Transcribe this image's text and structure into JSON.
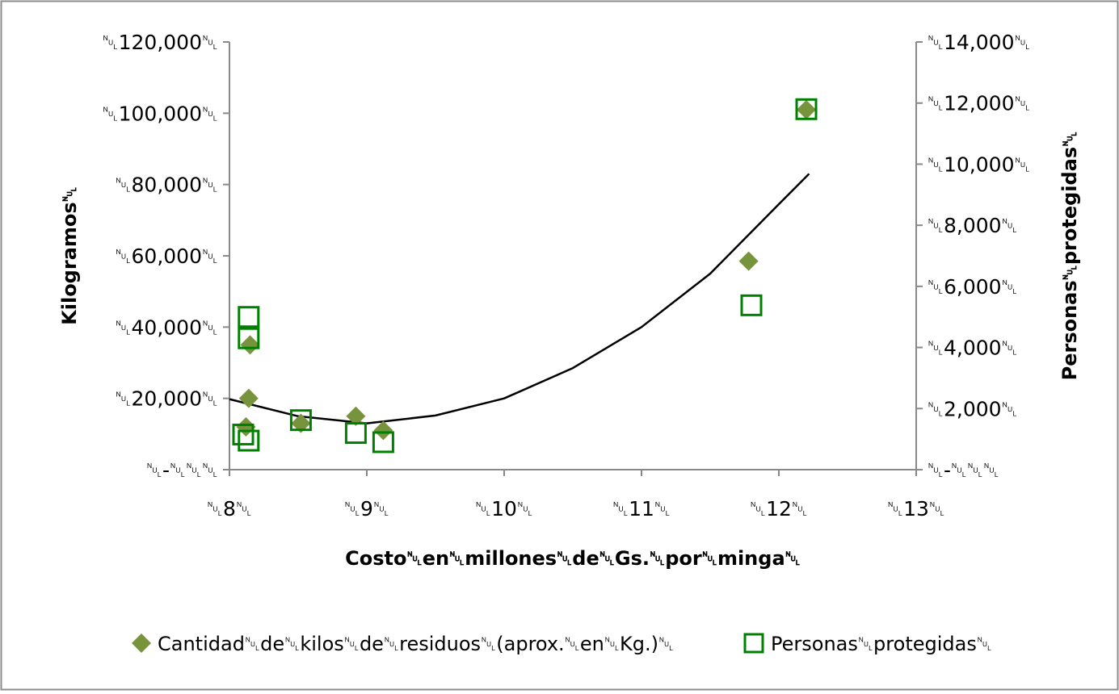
{
  "chart_data": {
    "type": "scatter",
    "title": "",
    "xlabel": "Costo␀en␀millones␀de␀Gs.␀por␀minga␀",
    "ylabel": "Kilogramos␀",
    "y2label": "Personas␀protegidas␀",
    "xlim": [
      8,
      13
    ],
    "ylim": [
      0,
      120000
    ],
    "y2lim": [
      0,
      14000
    ],
    "x_ticks": [
      8,
      9,
      10,
      11,
      12,
      13
    ],
    "x_tick_labels": [
      "␀8␀",
      "␀9␀",
      "␀10␀",
      "␀11␀",
      "␀12␀",
      "␀13␀"
    ],
    "y_ticks": [
      0,
      20000,
      40000,
      60000,
      80000,
      100000,
      120000
    ],
    "y_tick_labels": [
      "␀-␀␀␀",
      "␀20,000␀",
      "␀40,000␀",
      "␀60,000␀",
      "␀80,000␀",
      "␀100,000␀",
      "␀120,000␀"
    ],
    "y2_ticks": [
      0,
      2000,
      4000,
      6000,
      8000,
      10000,
      12000,
      14000
    ],
    "y2_tick_labels": [
      "␀-␀␀␀",
      "␀2,000␀",
      "␀4,000␀",
      "␀6,000␀",
      "␀8,000␀",
      "␀10,000␀",
      "␀12,000␀",
      "␀14,000␀"
    ],
    "grid": false,
    "legend_position": "bottom",
    "series": [
      {
        "name": "Cantidad␀de␀kilos␀de␀residuos␀(aprox.␀en␀Kg.)␀",
        "axis": "left",
        "marker": "diamond",
        "color": "#77933c",
        "points": [
          {
            "x": 8.12,
            "y": 12000
          },
          {
            "x": 8.14,
            "y": 20000
          },
          {
            "x": 8.15,
            "y": 35000
          },
          {
            "x": 8.52,
            "y": 13000
          },
          {
            "x": 8.92,
            "y": 15000
          },
          {
            "x": 9.12,
            "y": 11000
          },
          {
            "x": 11.78,
            "y": 58500
          },
          {
            "x": 12.2,
            "y": 101000
          }
        ]
      },
      {
        "name": "Personas␀protegidas␀",
        "axis": "right",
        "marker": "square-open",
        "color": "#008000",
        "points": [
          {
            "x": 8.1,
            "y": 1150
          },
          {
            "x": 8.14,
            "y": 5000
          },
          {
            "x": 8.14,
            "y": 4300
          },
          {
            "x": 8.14,
            "y": 950
          },
          {
            "x": 8.52,
            "y": 1620
          },
          {
            "x": 8.92,
            "y": 1200
          },
          {
            "x": 9.12,
            "y": 900
          },
          {
            "x": 11.8,
            "y": 5380
          },
          {
            "x": 12.2,
            "y": 11800
          }
        ]
      }
    ],
    "trendline": {
      "type": "polynomial",
      "axis": "left",
      "color": "#000000",
      "x_range": [
        8,
        12.22
      ],
      "points": [
        {
          "x": 8.0,
          "y": 19800
        },
        {
          "x": 8.5,
          "y": 15000
        },
        {
          "x": 9.0,
          "y": 13000
        },
        {
          "x": 9.5,
          "y": 15200
        },
        {
          "x": 10.0,
          "y": 20000
        },
        {
          "x": 10.5,
          "y": 28500
        },
        {
          "x": 11.0,
          "y": 40000
        },
        {
          "x": 11.5,
          "y": 55000
        },
        {
          "x": 12.0,
          "y": 74500
        },
        {
          "x": 12.22,
          "y": 83000
        }
      ]
    },
    "colors": {
      "axis": "#898989",
      "diamond": "#77933c",
      "square": "#008000"
    }
  }
}
